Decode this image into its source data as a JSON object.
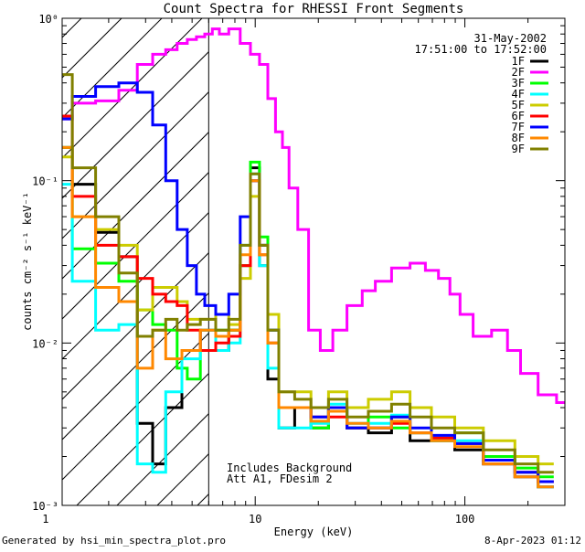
{
  "chart_data": {
    "type": "line",
    "title": "Count Spectra for RHESSI Front Segments",
    "xlabel": "Energy (keV)",
    "ylabel": "counts cm⁻² s⁻¹ keV⁻¹",
    "xscale": "log",
    "yscale": "log",
    "xlim": [
      1.2,
      300
    ],
    "ylim": [
      0.001,
      1.0
    ],
    "x_tick_labels": [
      {
        "value": 1,
        "label": "1"
      },
      {
        "value": 10,
        "label": "10"
      },
      {
        "value": 100,
        "label": "100"
      }
    ],
    "y_tick_labels": [
      {
        "value": 1,
        "label": "10⁰"
      },
      {
        "value": 0.1,
        "label": "10⁻¹"
      },
      {
        "value": 0.01,
        "label": "10⁻²"
      },
      {
        "value": 0.001,
        "label": "10⁻³"
      }
    ],
    "attenuator_marker_kev": 6.0,
    "hatched_region_kev": [
      1.2,
      6.0
    ],
    "info_lines": [
      "31-May-2002",
      "17:51:00 to 17:52:00"
    ],
    "annotations": [
      "Includes Background",
      "Att A1, FDesim 2"
    ],
    "legend_position": "top-right",
    "series": [
      {
        "name": "1F",
        "color": "#000000",
        "points": [
          [
            1.2,
            0.16
          ],
          [
            1.5,
            0.095
          ],
          [
            2,
            0.048
          ],
          [
            2.5,
            0.034
          ],
          [
            3,
            0.0032
          ],
          [
            3.5,
            0.0018
          ],
          [
            4,
            0.004
          ],
          [
            5,
            0.009
          ],
          [
            6,
            0.012
          ],
          [
            7,
            0.009
          ],
          [
            8,
            0.012
          ],
          [
            9,
            0.03
          ],
          [
            10,
            0.12
          ],
          [
            11,
            0.03
          ],
          [
            12,
            0.006
          ],
          [
            14,
            0.003
          ],
          [
            17,
            0.004
          ],
          [
            20,
            0.003
          ],
          [
            25,
            0.004
          ],
          [
            30,
            0.003
          ],
          [
            40,
            0.0028
          ],
          [
            50,
            0.0035
          ],
          [
            60,
            0.0025
          ],
          [
            80,
            0.0025
          ],
          [
            100,
            0.0022
          ],
          [
            150,
            0.0018
          ],
          [
            200,
            0.0015
          ],
          [
            250,
            0.0013
          ]
        ]
      },
      {
        "name": "2F",
        "color": "#ff00ff",
        "points": [
          [
            1.2,
            0.24
          ],
          [
            1.5,
            0.3
          ],
          [
            2,
            0.31
          ],
          [
            2.5,
            0.36
          ],
          [
            3,
            0.52
          ],
          [
            3.5,
            0.6
          ],
          [
            4,
            0.64
          ],
          [
            4.5,
            0.7
          ],
          [
            5,
            0.74
          ],
          [
            5.5,
            0.77
          ],
          [
            6,
            0.8
          ],
          [
            6.5,
            0.86
          ],
          [
            7,
            0.8
          ],
          [
            8,
            0.86
          ],
          [
            9,
            0.7
          ],
          [
            10,
            0.6
          ],
          [
            11,
            0.52
          ],
          [
            12,
            0.32
          ],
          [
            13,
            0.2
          ],
          [
            14,
            0.16
          ],
          [
            15,
            0.09
          ],
          [
            17,
            0.05
          ],
          [
            19,
            0.012
          ],
          [
            22,
            0.009
          ],
          [
            25,
            0.012
          ],
          [
            30,
            0.017
          ],
          [
            35,
            0.021
          ],
          [
            40,
            0.024
          ],
          [
            50,
            0.029
          ],
          [
            60,
            0.031
          ],
          [
            70,
            0.028
          ],
          [
            80,
            0.025
          ],
          [
            90,
            0.02
          ],
          [
            100,
            0.015
          ],
          [
            120,
            0.011
          ],
          [
            150,
            0.012
          ],
          [
            170,
            0.009
          ],
          [
            200,
            0.0065
          ],
          [
            250,
            0.0048
          ],
          [
            300,
            0.0043
          ]
        ]
      },
      {
        "name": "3F",
        "color": "#00ff00",
        "points": [
          [
            1.2,
            0.16
          ],
          [
            1.5,
            0.038
          ],
          [
            2,
            0.031
          ],
          [
            2.5,
            0.024
          ],
          [
            3,
            0.016
          ],
          [
            3.5,
            0.013
          ],
          [
            4,
            0.012
          ],
          [
            4.5,
            0.007
          ],
          [
            5,
            0.006
          ],
          [
            6,
            0.009
          ],
          [
            7,
            0.012
          ],
          [
            8,
            0.012
          ],
          [
            9,
            0.03
          ],
          [
            10,
            0.13
          ],
          [
            11,
            0.045
          ],
          [
            12,
            0.012
          ],
          [
            14,
            0.004
          ],
          [
            17,
            0.004
          ],
          [
            20,
            0.003
          ],
          [
            25,
            0.004
          ],
          [
            30,
            0.003
          ],
          [
            40,
            0.0035
          ],
          [
            50,
            0.003
          ],
          [
            60,
            0.0028
          ],
          [
            80,
            0.0025
          ],
          [
            100,
            0.0028
          ],
          [
            150,
            0.002
          ],
          [
            200,
            0.0017
          ],
          [
            250,
            0.0015
          ]
        ]
      },
      {
        "name": "4F",
        "color": "#00ffff",
        "points": [
          [
            1.2,
            0.095
          ],
          [
            1.5,
            0.024
          ],
          [
            2,
            0.012
          ],
          [
            2.5,
            0.013
          ],
          [
            3,
            0.0018
          ],
          [
            3.5,
            0.0016
          ],
          [
            4,
            0.005
          ],
          [
            5,
            0.008
          ],
          [
            6,
            0.012
          ],
          [
            7,
            0.009
          ],
          [
            8,
            0.01
          ],
          [
            9,
            0.04
          ],
          [
            10,
            0.11
          ],
          [
            11,
            0.03
          ],
          [
            12,
            0.007
          ],
          [
            14,
            0.003
          ],
          [
            17,
            0.003
          ],
          [
            20,
            0.0032
          ],
          [
            25,
            0.0042
          ],
          [
            30,
            0.0032
          ],
          [
            40,
            0.0032
          ],
          [
            50,
            0.0036
          ],
          [
            60,
            0.0028
          ],
          [
            80,
            0.0025
          ],
          [
            100,
            0.0025
          ],
          [
            150,
            0.0018
          ],
          [
            200,
            0.0016
          ],
          [
            250,
            0.0013
          ]
        ]
      },
      {
        "name": "5F",
        "color": "#cccc00",
        "points": [
          [
            1.2,
            0.14
          ],
          [
            1.5,
            0.06
          ],
          [
            2,
            0.05
          ],
          [
            2.5,
            0.04
          ],
          [
            3,
            0.016
          ],
          [
            3.5,
            0.022
          ],
          [
            4,
            0.022
          ],
          [
            4.5,
            0.018
          ],
          [
            5,
            0.014
          ],
          [
            6,
            0.014
          ],
          [
            7,
            0.015
          ],
          [
            8,
            0.013
          ],
          [
            9,
            0.025
          ],
          [
            10,
            0.08
          ],
          [
            11,
            0.04
          ],
          [
            12,
            0.015
          ],
          [
            14,
            0.005
          ],
          [
            17,
            0.005
          ],
          [
            20,
            0.004
          ],
          [
            25,
            0.005
          ],
          [
            30,
            0.004
          ],
          [
            40,
            0.0045
          ],
          [
            50,
            0.005
          ],
          [
            60,
            0.004
          ],
          [
            80,
            0.0035
          ],
          [
            100,
            0.003
          ],
          [
            150,
            0.0025
          ],
          [
            200,
            0.002
          ],
          [
            250,
            0.0018
          ]
        ]
      },
      {
        "name": "6F",
        "color": "#ff0000",
        "points": [
          [
            1.2,
            0.25
          ],
          [
            1.5,
            0.08
          ],
          [
            2,
            0.04
          ],
          [
            2.5,
            0.034
          ],
          [
            3,
            0.025
          ],
          [
            3.5,
            0.02
          ],
          [
            4,
            0.018
          ],
          [
            4.5,
            0.017
          ],
          [
            5,
            0.012
          ],
          [
            6,
            0.009
          ],
          [
            7,
            0.01
          ],
          [
            8,
            0.011
          ],
          [
            9,
            0.03
          ],
          [
            10,
            0.1
          ],
          [
            11,
            0.035
          ],
          [
            12,
            0.01
          ],
          [
            14,
            0.004
          ],
          [
            17,
            0.004
          ],
          [
            20,
            0.0035
          ],
          [
            25,
            0.0035
          ],
          [
            30,
            0.003
          ],
          [
            40,
            0.003
          ],
          [
            50,
            0.0032
          ],
          [
            60,
            0.0028
          ],
          [
            80,
            0.0026
          ],
          [
            100,
            0.0024
          ],
          [
            150,
            0.0018
          ],
          [
            200,
            0.0016
          ],
          [
            250,
            0.0014
          ]
        ]
      },
      {
        "name": "7F",
        "color": "#0000ff",
        "points": [
          [
            1.2,
            0.24
          ],
          [
            1.5,
            0.33
          ],
          [
            2,
            0.38
          ],
          [
            2.5,
            0.4
          ],
          [
            3,
            0.35
          ],
          [
            3.5,
            0.22
          ],
          [
            4,
            0.1
          ],
          [
            4.5,
            0.05
          ],
          [
            5,
            0.03
          ],
          [
            5.5,
            0.02
          ],
          [
            6,
            0.017
          ],
          [
            7,
            0.015
          ],
          [
            8,
            0.02
          ],
          [
            9,
            0.06
          ],
          [
            10,
            0.1
          ],
          [
            11,
            0.04
          ],
          [
            12,
            0.012
          ],
          [
            14,
            0.004
          ],
          [
            17,
            0.004
          ],
          [
            20,
            0.0035
          ],
          [
            25,
            0.004
          ],
          [
            30,
            0.003
          ],
          [
            40,
            0.003
          ],
          [
            50,
            0.0035
          ],
          [
            60,
            0.003
          ],
          [
            80,
            0.0027
          ],
          [
            100,
            0.0024
          ],
          [
            150,
            0.0019
          ],
          [
            200,
            0.0016
          ],
          [
            250,
            0.0014
          ]
        ]
      },
      {
        "name": "8F",
        "color": "#ff8800",
        "points": [
          [
            1.2,
            0.16
          ],
          [
            1.5,
            0.06
          ],
          [
            2,
            0.022
          ],
          [
            2.5,
            0.018
          ],
          [
            3,
            0.007
          ],
          [
            3.5,
            0.012
          ],
          [
            4,
            0.008
          ],
          [
            5,
            0.009
          ],
          [
            6,
            0.012
          ],
          [
            7,
            0.011
          ],
          [
            8,
            0.012
          ],
          [
            9,
            0.035
          ],
          [
            10,
            0.1
          ],
          [
            11,
            0.035
          ],
          [
            12,
            0.01
          ],
          [
            14,
            0.004
          ],
          [
            17,
            0.004
          ],
          [
            20,
            0.0033
          ],
          [
            25,
            0.0038
          ],
          [
            30,
            0.0032
          ],
          [
            40,
            0.003
          ],
          [
            50,
            0.0033
          ],
          [
            60,
            0.0028
          ],
          [
            80,
            0.0025
          ],
          [
            100,
            0.0023
          ],
          [
            150,
            0.0018
          ],
          [
            200,
            0.0015
          ],
          [
            250,
            0.0013
          ]
        ]
      },
      {
        "name": "9F",
        "color": "#808000",
        "points": [
          [
            1.2,
            0.45
          ],
          [
            1.5,
            0.12
          ],
          [
            2,
            0.06
          ],
          [
            2.5,
            0.027
          ],
          [
            3,
            0.011
          ],
          [
            3.5,
            0.012
          ],
          [
            4,
            0.014
          ],
          [
            4.5,
            0.012
          ],
          [
            5,
            0.013
          ],
          [
            6,
            0.014
          ],
          [
            7,
            0.012
          ],
          [
            8,
            0.014
          ],
          [
            9,
            0.04
          ],
          [
            10,
            0.11
          ],
          [
            11,
            0.04
          ],
          [
            12,
            0.012
          ],
          [
            14,
            0.005
          ],
          [
            17,
            0.0045
          ],
          [
            20,
            0.004
          ],
          [
            25,
            0.0045
          ],
          [
            30,
            0.0035
          ],
          [
            40,
            0.0038
          ],
          [
            50,
            0.0042
          ],
          [
            60,
            0.0035
          ],
          [
            80,
            0.003
          ],
          [
            100,
            0.0028
          ],
          [
            150,
            0.0022
          ],
          [
            200,
            0.0018
          ],
          [
            250,
            0.0016
          ]
        ]
      }
    ]
  },
  "footer": {
    "generated_by": "Generated by hsi_min_spectra_plot.pro",
    "timestamp": "8-Apr-2023 01:12"
  }
}
